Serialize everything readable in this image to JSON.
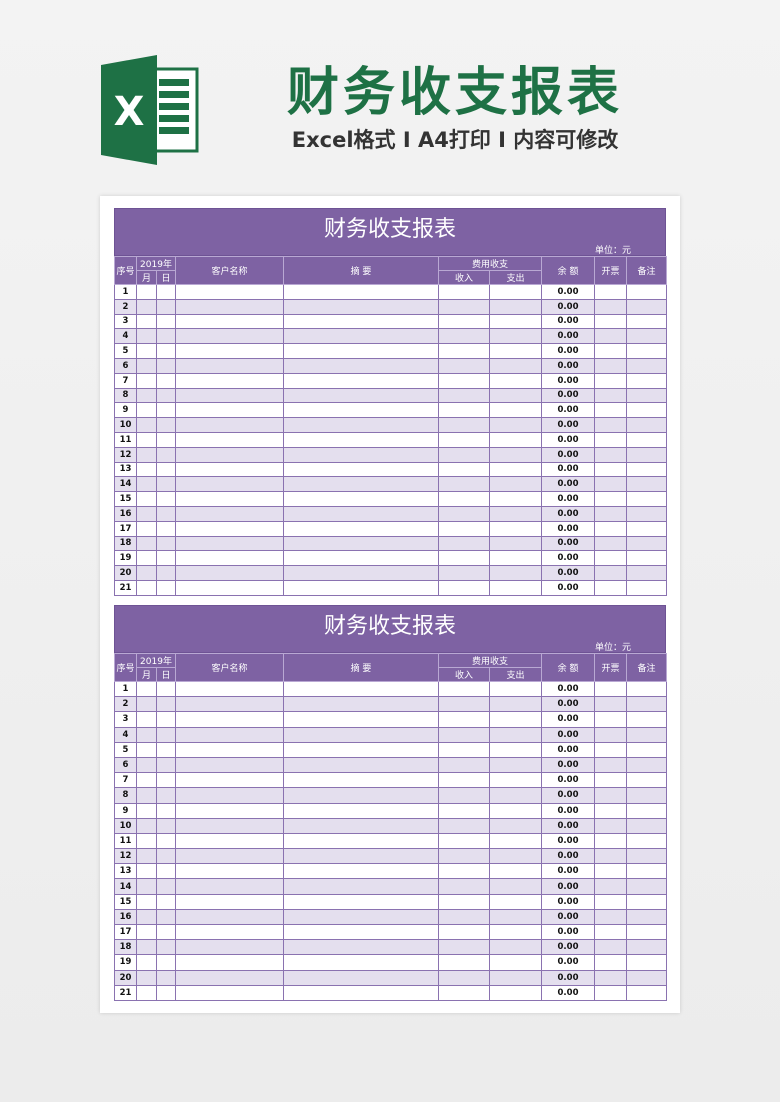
{
  "header": {
    "title": "财务收支报表",
    "subtitle": "Excel格式 I A4打印 I 内容可修改",
    "logo_letter": "X"
  },
  "colors": {
    "brand_green": "#1e7145",
    "purple": "#7e62a3",
    "alt_row": "#e4dfee"
  },
  "sheets": [
    {
      "title": "财务收支报表",
      "unit": "单位：元"
    },
    {
      "title": "财务收支报表",
      "unit": "单位：元"
    }
  ],
  "columns": {
    "seq": "序号",
    "year": "2019年",
    "month": "月",
    "day": "日",
    "customer": "客户名称",
    "summary": "摘 要",
    "fee_group": "费用收支",
    "income": "收入",
    "expense": "支出",
    "balance": "余 额",
    "invoice": "开票",
    "remark": "备注"
  },
  "rows": [
    {
      "no": "1",
      "balance": "0.00"
    },
    {
      "no": "2",
      "balance": "0.00"
    },
    {
      "no": "3",
      "balance": "0.00"
    },
    {
      "no": "4",
      "balance": "0.00"
    },
    {
      "no": "5",
      "balance": "0.00"
    },
    {
      "no": "6",
      "balance": "0.00"
    },
    {
      "no": "7",
      "balance": "0.00"
    },
    {
      "no": "8",
      "balance": "0.00"
    },
    {
      "no": "9",
      "balance": "0.00"
    },
    {
      "no": "10",
      "balance": "0.00"
    },
    {
      "no": "11",
      "balance": "0.00"
    },
    {
      "no": "12",
      "balance": "0.00"
    },
    {
      "no": "13",
      "balance": "0.00"
    },
    {
      "no": "14",
      "balance": "0.00"
    },
    {
      "no": "15",
      "balance": "0.00"
    },
    {
      "no": "16",
      "balance": "0.00"
    },
    {
      "no": "17",
      "balance": "0.00"
    },
    {
      "no": "18",
      "balance": "0.00"
    },
    {
      "no": "19",
      "balance": "0.00"
    },
    {
      "no": "20",
      "balance": "0.00"
    },
    {
      "no": "21",
      "balance": "0.00"
    }
  ]
}
